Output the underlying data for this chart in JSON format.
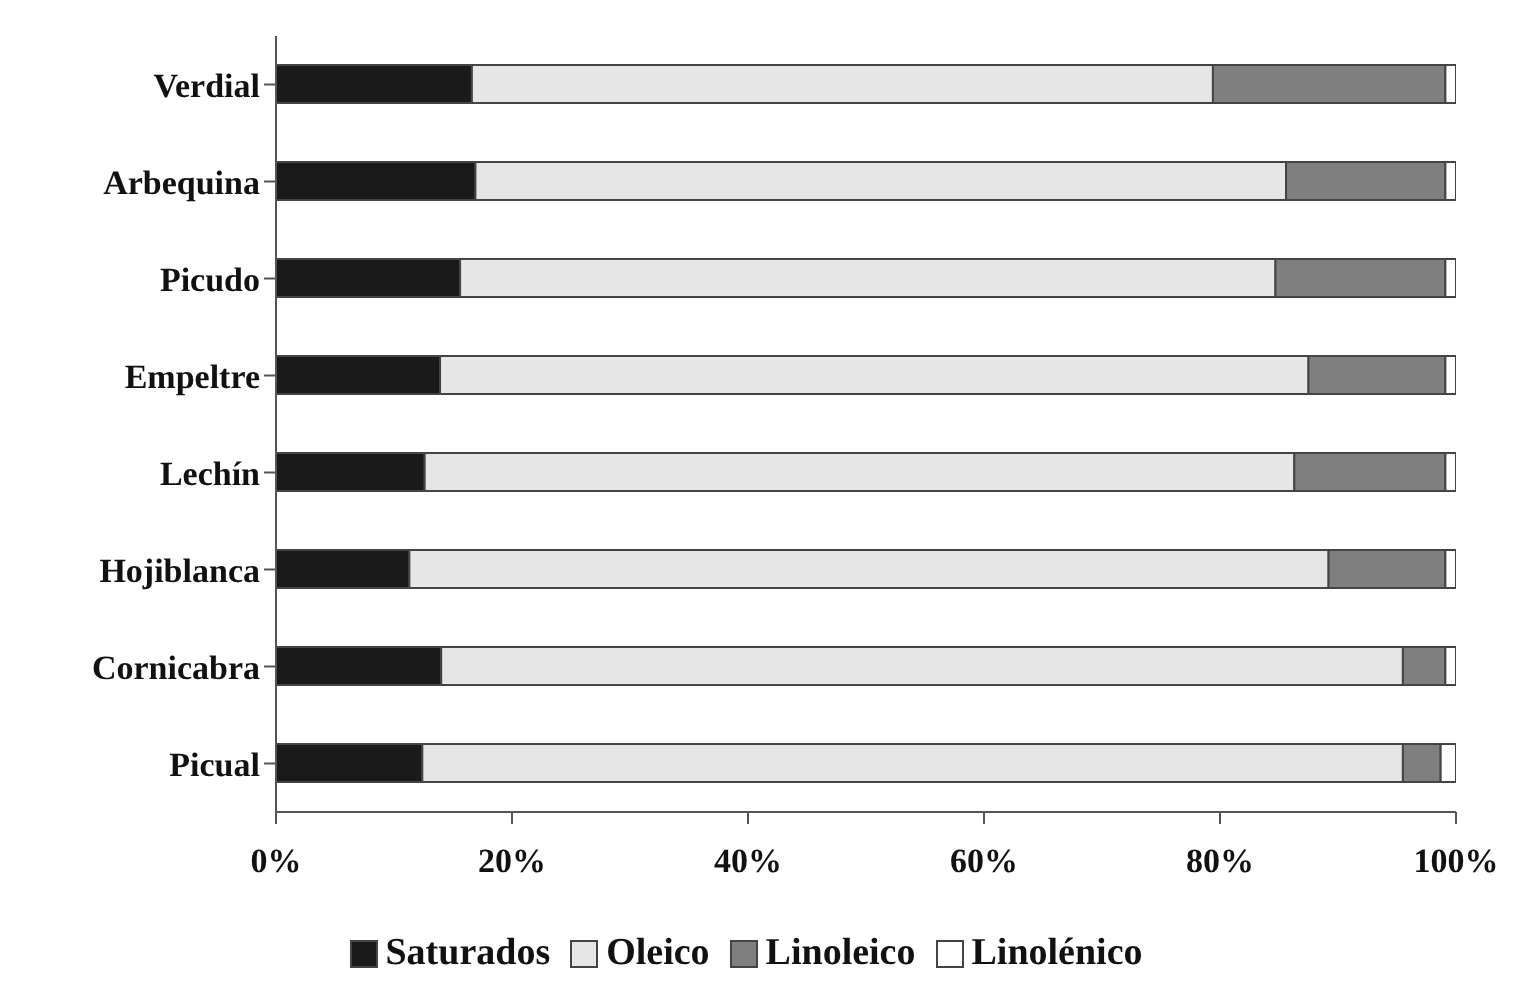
{
  "chart_data": {
    "type": "bar",
    "orientation": "horizontal",
    "stacked": true,
    "categories": [
      "Verdial",
      "Arbequina",
      "Picudo",
      "Empeltre",
      "Lechín",
      "Hojiblanca",
      "Cornicabra",
      "Picual"
    ],
    "series": [
      {
        "name": "Saturados",
        "color": "#1a1a1a",
        "values": [
          16.6,
          16.9,
          15.6,
          13.9,
          12.6,
          11.3,
          14.0,
          12.4
        ]
      },
      {
        "name": "Oleico",
        "color": "#e6e6e6",
        "values": [
          62.8,
          68.7,
          69.1,
          73.6,
          73.7,
          77.9,
          81.5,
          83.1
        ]
      },
      {
        "name": "Linoleico",
        "color": "#7f7f7f",
        "values": [
          19.7,
          13.5,
          14.4,
          11.6,
          12.8,
          9.9,
          3.6,
          3.2
        ]
      },
      {
        "name": "Linolénico",
        "color": "#ffffff",
        "values": [
          0.9,
          0.9,
          0.9,
          0.9,
          0.9,
          0.9,
          0.9,
          1.3
        ]
      }
    ],
    "xlim": [
      0,
      100
    ],
    "xticks": [
      {
        "value": 0,
        "label": "0%"
      },
      {
        "value": 20,
        "label": "20%"
      },
      {
        "value": 40,
        "label": "40%"
      },
      {
        "value": 60,
        "label": "60%"
      },
      {
        "value": 80,
        "label": "80%"
      },
      {
        "value": 100,
        "label": "100%"
      }
    ],
    "grid": false,
    "legend": "bottom"
  }
}
